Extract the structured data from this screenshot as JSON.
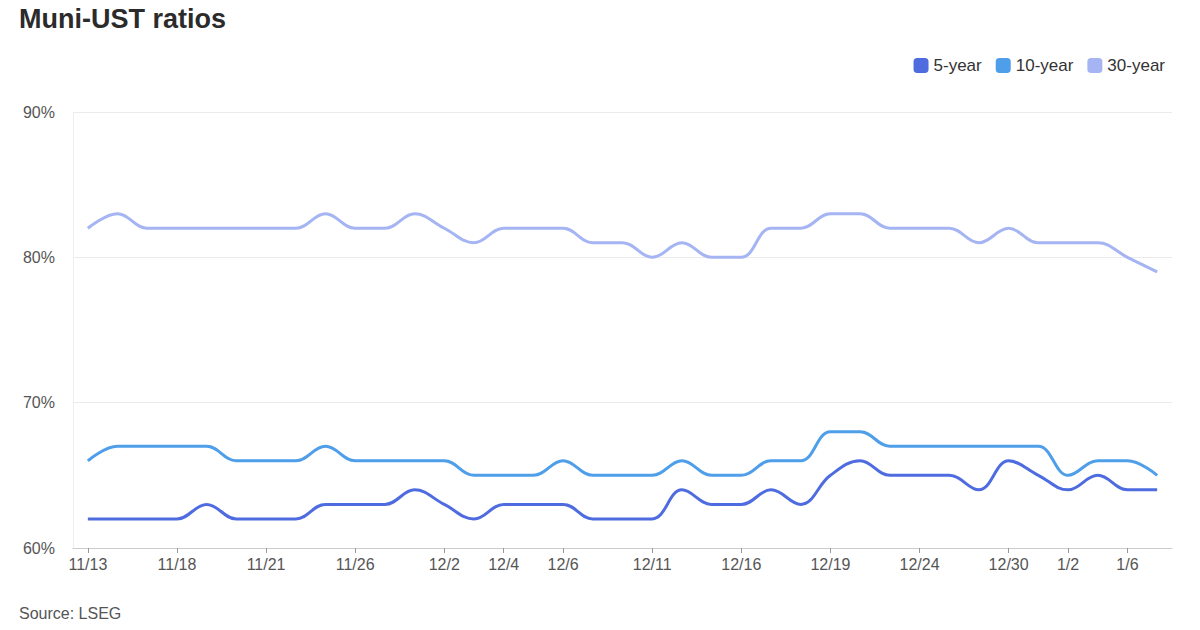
{
  "chart_data": {
    "type": "line",
    "title": "Muni-UST ratios",
    "source": "Source: LSEG",
    "categories": [
      "11/13",
      null,
      null,
      "11/18",
      null,
      null,
      "11/21",
      null,
      null,
      "11/26",
      null,
      null,
      "12/2",
      null,
      "12/4",
      null,
      "12/6",
      null,
      null,
      "12/11",
      null,
      null,
      "12/16",
      null,
      null,
      "12/19",
      null,
      null,
      "12/24",
      null,
      null,
      "12/30",
      null,
      "1/2",
      null,
      "1/6",
      null
    ],
    "series": [
      {
        "name": "5-year",
        "color": "#4e6ce0",
        "values": [
          62,
          62,
          62,
          62,
          63,
          62,
          62,
          62,
          63,
          63,
          63,
          64,
          63,
          62,
          63,
          63,
          63,
          62,
          62,
          62,
          64,
          63,
          63,
          64,
          63,
          65,
          66,
          65,
          65,
          65,
          64,
          66,
          65,
          64,
          65,
          64,
          64
        ]
      },
      {
        "name": "10-year",
        "color": "#4f9ee9",
        "values": [
          66,
          67,
          67,
          67,
          67,
          66,
          66,
          66,
          67,
          66,
          66,
          66,
          66,
          65,
          65,
          65,
          66,
          65,
          65,
          65,
          66,
          65,
          65,
          66,
          66,
          68,
          68,
          67,
          67,
          67,
          67,
          67,
          67,
          65,
          66,
          66,
          65
        ]
      },
      {
        "name": "30-year",
        "color": "#a5b4f2",
        "values": [
          82,
          83,
          82,
          82,
          82,
          82,
          82,
          82,
          83,
          82,
          82,
          83,
          82,
          81,
          82,
          82,
          82,
          81,
          81,
          80,
          81,
          80,
          80,
          82,
          82,
          83,
          83,
          82,
          82,
          82,
          81,
          82,
          81,
          81,
          81,
          80,
          79
        ]
      }
    ],
    "ylim": [
      60,
      90
    ],
    "yticks": [
      {
        "value": 60,
        "label": "60%"
      },
      {
        "value": 70,
        "label": "70%"
      },
      {
        "value": 80,
        "label": "80%"
      },
      {
        "value": 90,
        "label": "90%"
      }
    ],
    "grid": true,
    "legend": "top-right",
    "marker": "none",
    "line_style": "solid"
  }
}
